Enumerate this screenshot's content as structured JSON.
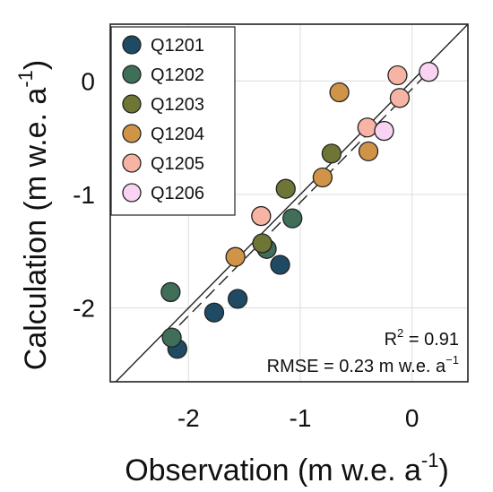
{
  "chart_data": {
    "type": "scatter",
    "xlabel": "Observation (m w.e. a",
    "xlabel_sup": "-1",
    "xlabel_end": ")",
    "ylabel": "Calculation (m w.e. a",
    "ylabel_sup": "-1",
    "ylabel_end": ")",
    "xlim": [
      -2.7,
      0.5
    ],
    "ylim": [
      -2.65,
      0.5
    ],
    "x_ticks": [
      -2,
      -1,
      0
    ],
    "y_ticks": [
      -2,
      -1,
      0
    ],
    "tick_labels_x": [
      "-2",
      "-1",
      "0"
    ],
    "tick_labels_y": [
      "-2",
      "-1",
      "0"
    ],
    "grid": true,
    "legend_position": "top-left",
    "reference_lines": [
      "1:1 line (solid)",
      "regression fit (dashed)"
    ],
    "fit_line": {
      "slope": 1.0,
      "intercept": -0.07
    },
    "annotations": {
      "r2_prefix": "R",
      "r2_sup": "2",
      "r2_suffix": " = 0.91",
      "rmse_prefix": "RMSE = 0.23 m w.e. a",
      "rmse_sup": "−1"
    },
    "series": [
      {
        "name": "Q1201",
        "color": "#1f4a63",
        "points": [
          [
            -2.1,
            -2.36
          ],
          [
            -1.77,
            -2.04
          ],
          [
            -1.56,
            -1.92
          ],
          [
            -1.18,
            -1.62
          ]
        ]
      },
      {
        "name": "Q1202",
        "color": "#3f6e59",
        "points": [
          [
            -2.16,
            -1.86
          ],
          [
            -2.15,
            -2.26
          ],
          [
            -1.3,
            -1.48
          ],
          [
            -1.07,
            -1.21
          ]
        ]
      },
      {
        "name": "Q1203",
        "color": "#6f7535",
        "points": [
          [
            -1.34,
            -1.43
          ],
          [
            -1.13,
            -0.95
          ],
          [
            -0.72,
            -0.64
          ]
        ]
      },
      {
        "name": "Q1204",
        "color": "#cf9447",
        "points": [
          [
            -1.58,
            -1.55
          ],
          [
            -0.8,
            -0.85
          ],
          [
            -0.65,
            -0.1
          ],
          [
            -0.39,
            -0.62
          ]
        ]
      },
      {
        "name": "Q1205",
        "color": "#f7b3a4",
        "points": [
          [
            -1.35,
            -1.19
          ],
          [
            -0.4,
            -0.41
          ],
          [
            -0.13,
            0.05
          ],
          [
            -0.11,
            -0.15
          ]
        ]
      },
      {
        "name": "Q1206",
        "color": "#f9d3f2",
        "points": [
          [
            -0.25,
            -0.44
          ],
          [
            0.15,
            0.08
          ]
        ]
      }
    ]
  }
}
